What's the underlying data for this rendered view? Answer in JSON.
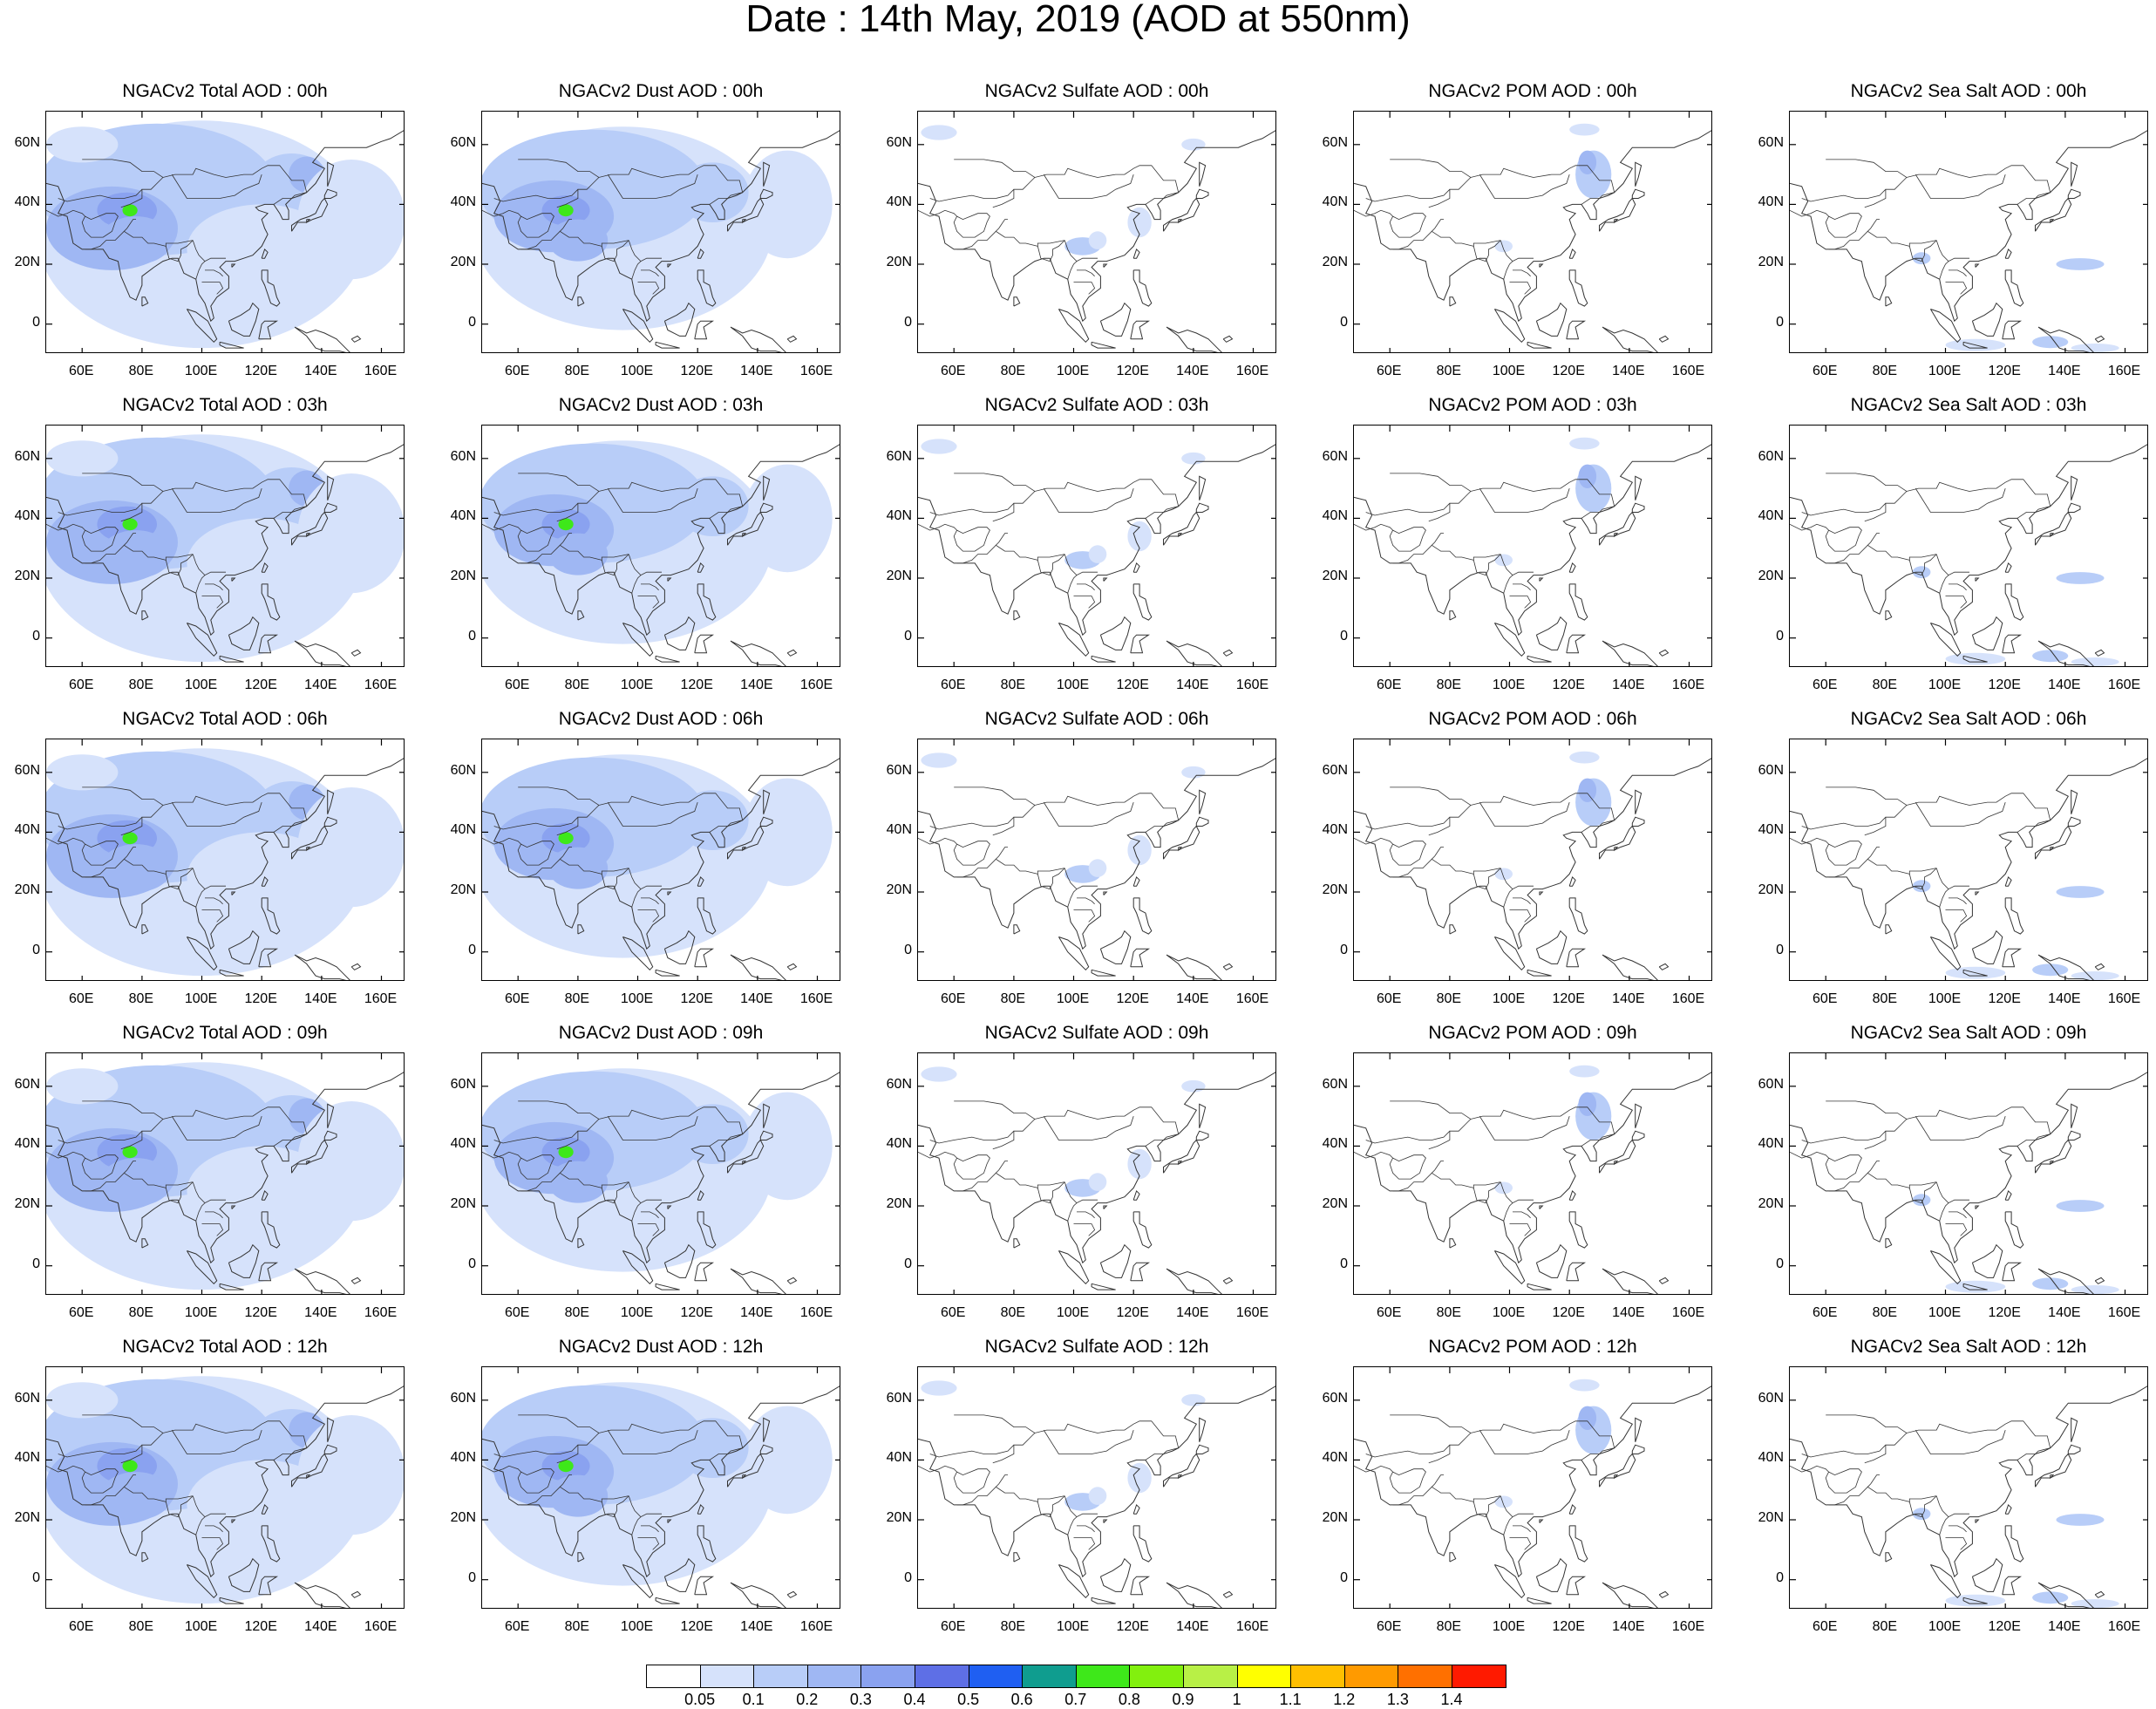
{
  "title": "Date : 14th May, 2019 (AOD at 550nm)",
  "lat_labels": [
    "60N",
    "40N",
    "20N",
    "0"
  ],
  "lon_labels": [
    "60E",
    "80E",
    "100E",
    "120E",
    "140E",
    "160E"
  ],
  "panel_titles": [
    [
      "NGACv2 Total AOD : 00h",
      "NGACv2 Dust AOD : 00h",
      "NGACv2 Sulfate AOD : 00h",
      "NGACv2 POM AOD : 00h",
      "NGACv2 Sea Salt AOD : 00h"
    ],
    [
      "NGACv2 Total AOD : 03h",
      "NGACv2 Dust AOD : 03h",
      "NGACv2 Sulfate AOD : 03h",
      "NGACv2 POM AOD : 03h",
      "NGACv2 Sea Salt AOD : 03h"
    ],
    [
      "NGACv2 Total AOD : 06h",
      "NGACv2 Dust AOD : 06h",
      "NGACv2 Sulfate AOD : 06h",
      "NGACv2 POM AOD : 06h",
      "NGACv2 Sea Salt AOD : 06h"
    ],
    [
      "NGACv2 Total AOD : 09h",
      "NGACv2 Dust AOD : 09h",
      "NGACv2 Sulfate AOD : 09h",
      "NGACv2 POM AOD : 09h",
      "NGACv2 Sea Salt  AOD : 09h"
    ],
    [
      "NGACv2 Total AOD  : 12h",
      "NGACv2 Dust AOD : 12h",
      "NGACv2 Sulfate AOD : 12h",
      "NGACv2 POM  AOD : 12h",
      "NGACv2 Sea Salt  AOD : 12h"
    ]
  ],
  "colorbar": {
    "labels": [
      "0.05",
      "0.1",
      "0.2",
      "0.3",
      "0.4",
      "0.5",
      "0.6",
      "0.7",
      "0.8",
      "0.9",
      "1",
      "1.1",
      "1.2",
      "1.3",
      "1.4"
    ],
    "colors": [
      "#ffffff",
      "#d6e2fb",
      "#b8cdf8",
      "#9fb7f3",
      "#8aa2f0",
      "#5e6fe6",
      "#1f5ff2",
      "#0f9d8f",
      "#3ee81a",
      "#82f00e",
      "#b8f046",
      "#ffff00",
      "#ffbf00",
      "#ff9a00",
      "#ff7000",
      "#ff1a00"
    ]
  }
}
